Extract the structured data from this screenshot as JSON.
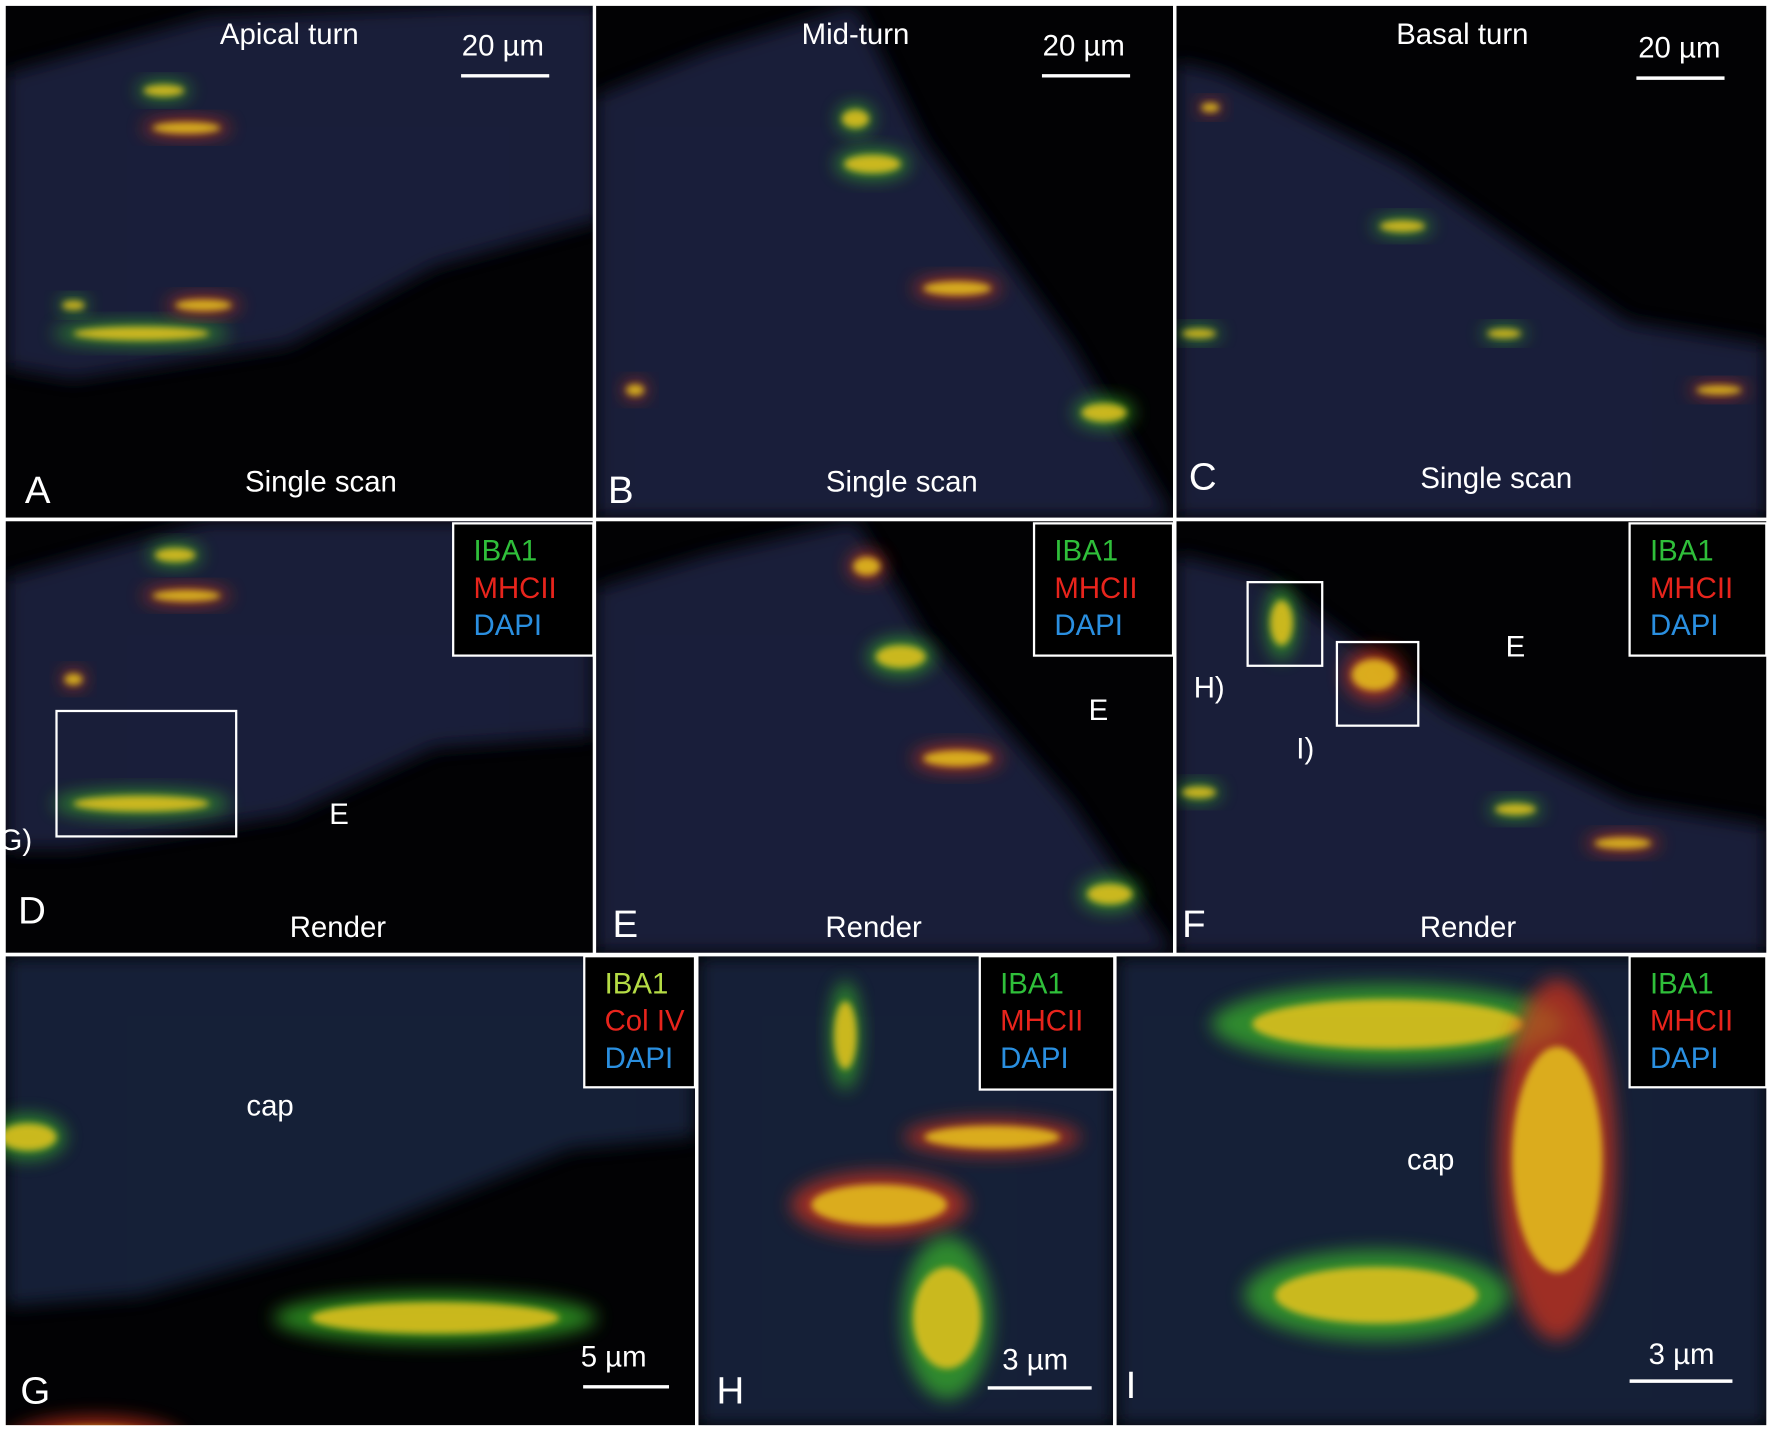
{
  "panels": [
    {
      "letter": "A",
      "title": "Apical turn",
      "scale_bar": "20 µm",
      "caption": "Single scan"
    },
    {
      "letter": "B",
      "title": "Mid-turn",
      "scale_bar": "20 µm",
      "caption": "Single scan"
    },
    {
      "letter": "C",
      "title": "Basal turn",
      "scale_bar": "20 µm",
      "caption": "Single scan"
    },
    {
      "letter": "D",
      "caption": "Render",
      "annotations": [
        "G)",
        "E"
      ],
      "legend": [
        {
          "text": "IBA1",
          "color": "#2fbf3a"
        },
        {
          "text": "MHCII",
          "color": "#e8241c"
        },
        {
          "text": "DAPI",
          "color": "#2a8fe0"
        }
      ]
    },
    {
      "letter": "E",
      "caption": "Render",
      "annotations": [
        "E"
      ],
      "legend": [
        {
          "text": "IBA1",
          "color": "#2fbf3a"
        },
        {
          "text": "MHCII",
          "color": "#e8241c"
        },
        {
          "text": "DAPI",
          "color": "#2a8fe0"
        }
      ]
    },
    {
      "letter": "F",
      "caption": "Render",
      "annotations": [
        "H)",
        "I)",
        "E"
      ],
      "legend": [
        {
          "text": "IBA1",
          "color": "#2fbf3a"
        },
        {
          "text": "MHCII",
          "color": "#e8241c"
        },
        {
          "text": "DAPI",
          "color": "#2a8fe0"
        }
      ]
    },
    {
      "letter": "G",
      "scale_bar": "5 µm",
      "annotations": [
        "cap"
      ],
      "legend": [
        {
          "text": "IBA1",
          "color": "#b5dc45"
        },
        {
          "text": "Col IV",
          "color": "#e8241c"
        },
        {
          "text": "DAPI",
          "color": "#2a8fe0"
        }
      ]
    },
    {
      "letter": "H",
      "scale_bar": "3 µm",
      "legend": [
        {
          "text": "IBA1",
          "color": "#2fbf3a"
        },
        {
          "text": "MHCII",
          "color": "#e8241c"
        },
        {
          "text": "DAPI",
          "color": "#2a8fe0"
        }
      ]
    },
    {
      "letter": "I",
      "scale_bar": "3 µm",
      "annotations": [
        "cap"
      ],
      "legend": [
        {
          "text": "IBA1",
          "color": "#2fbf3a"
        },
        {
          "text": "MHCII",
          "color": "#e8241c"
        },
        {
          "text": "DAPI",
          "color": "#2a8fe0"
        }
      ]
    }
  ]
}
